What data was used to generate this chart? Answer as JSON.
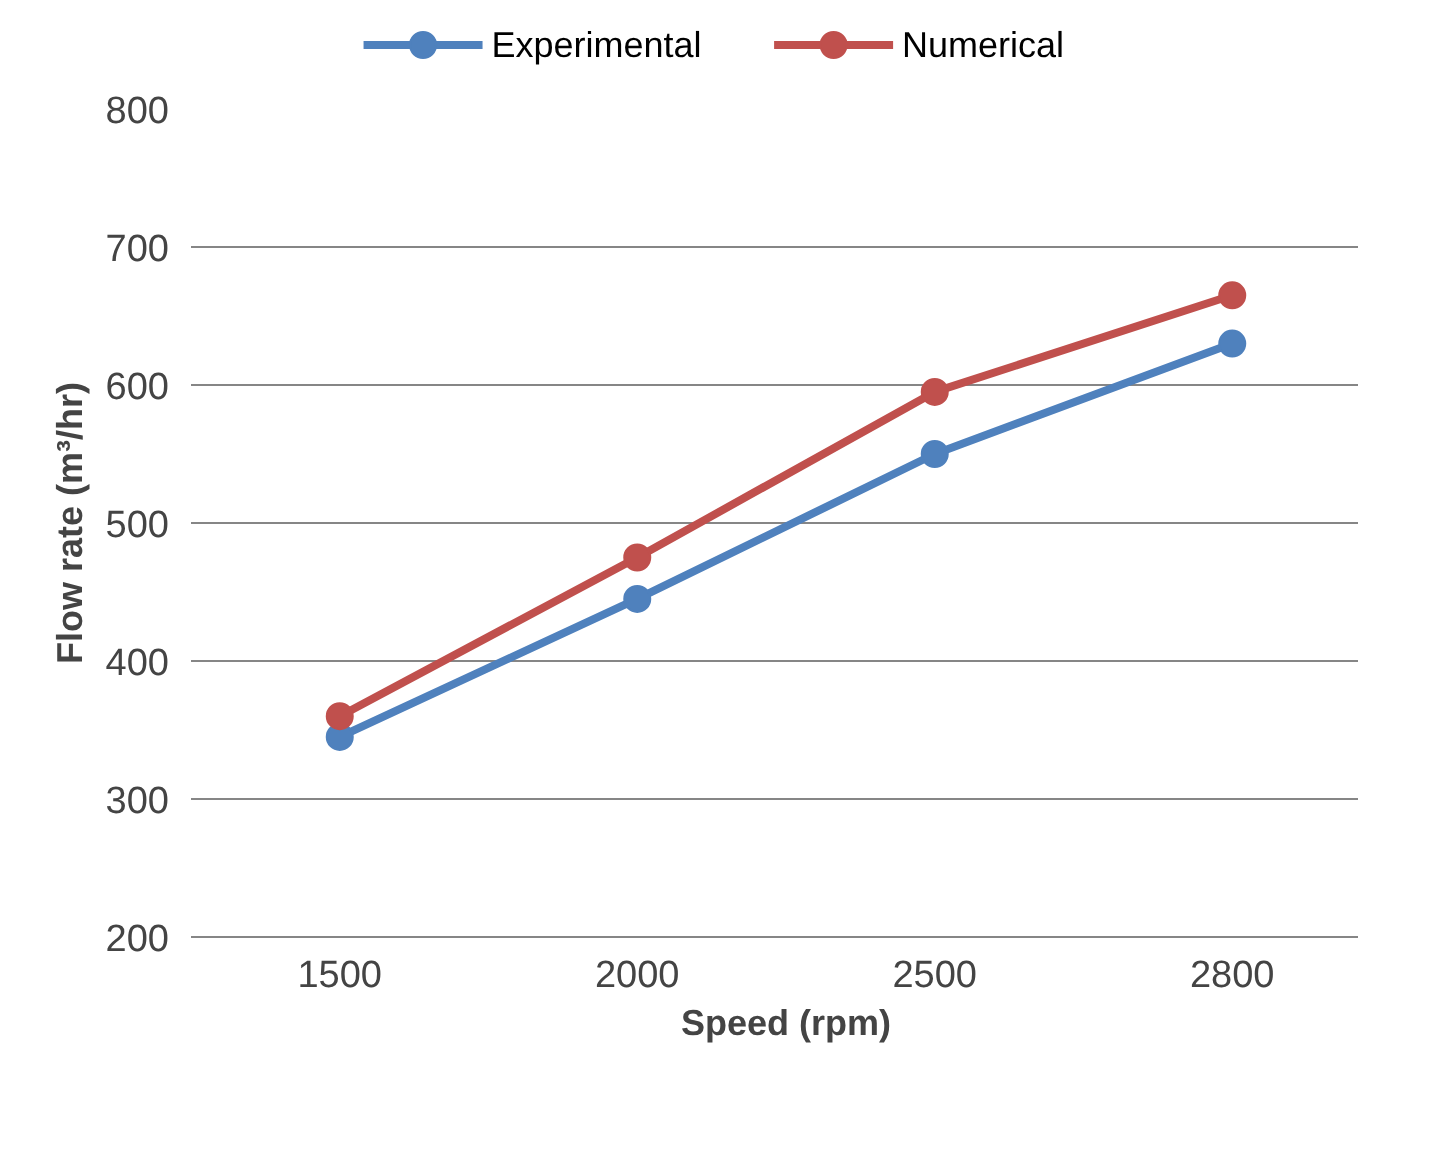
{
  "chart_data": {
    "type": "line",
    "xlabel": "Speed (rpm)",
    "ylabel": "Flow rate (m³/hr)",
    "categories": [
      "1500",
      "2000",
      "2500",
      "2800"
    ],
    "series": [
      {
        "name": "Experimental",
        "color": "#4f81bd",
        "values": [
          345,
          445,
          550,
          630
        ]
      },
      {
        "name": "Numerical",
        "color": "#c0504d",
        "values": [
          360,
          475,
          595,
          665
        ]
      }
    ],
    "ylim": [
      200,
      800
    ],
    "yticks": [
      200,
      300,
      400,
      500,
      600,
      700,
      800
    ],
    "grid": "y",
    "legend": "top",
    "marker": "circle",
    "line_style": "solid"
  }
}
